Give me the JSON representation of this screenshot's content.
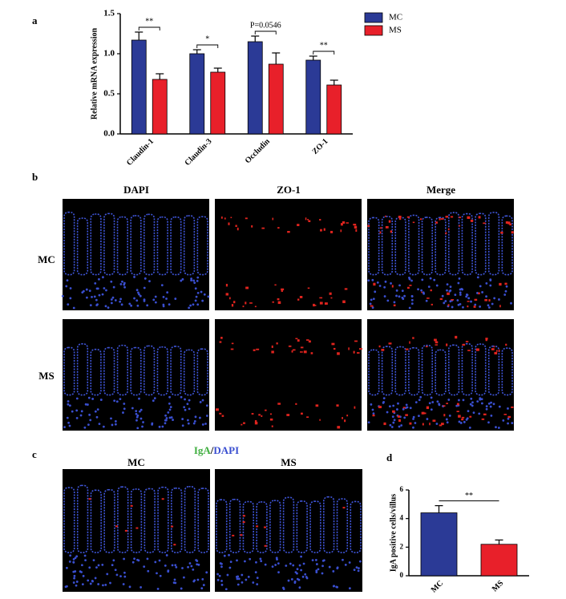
{
  "panel_labels": [
    "a",
    "b",
    "c",
    "d"
  ],
  "chart_data": [
    {
      "type": "grouped_bar",
      "y_label": "Relative mRNA expression",
      "categories": [
        "Claudin-1",
        "Claudin-3",
        "Occludin",
        "ZO-1"
      ],
      "series": [
        {
          "name": "MC",
          "color": "#2b3a96",
          "values": [
            1.17,
            1.0,
            1.15,
            0.92
          ],
          "errors": [
            0.1,
            0.05,
            0.07,
            0.05
          ]
        },
        {
          "name": "MS",
          "color": "#e8202a",
          "values": [
            0.68,
            0.77,
            0.87,
            0.61
          ],
          "errors": [
            0.07,
            0.05,
            0.14,
            0.06
          ]
        }
      ],
      "annotations": [
        "**",
        "*",
        "P=0.0546",
        "**"
      ],
      "ylim": [
        0,
        1.5
      ],
      "yticks": [
        {
          "value": 0,
          "label": "0.0"
        },
        {
          "value": 0.5,
          "label": "0.5"
        },
        {
          "value": 1,
          "label": "1.0"
        },
        {
          "value": 1.5,
          "label": "1.5"
        }
      ],
      "legend": "top-right"
    },
    {
      "type": "bar",
      "y_label": "IgA positive cells/villus",
      "categories": [
        "MC",
        "MS"
      ],
      "values": [
        4.4,
        2.2
      ],
      "errors": [
        0.5,
        0.3
      ],
      "colors": [
        "#2b3a96",
        "#e8202a"
      ],
      "annotation": "**",
      "ylim": [
        0,
        6
      ],
      "yticks": [
        0,
        2,
        4,
        6
      ]
    }
  ],
  "figure_b": {
    "columns": [
      "DAPI",
      "ZO-1",
      "Merge"
    ],
    "rows": [
      "MC",
      "MS"
    ]
  },
  "figure_c": {
    "title_parts": [
      "IgA",
      "/",
      "DAPI"
    ],
    "labels": [
      "MC",
      "MS"
    ]
  }
}
